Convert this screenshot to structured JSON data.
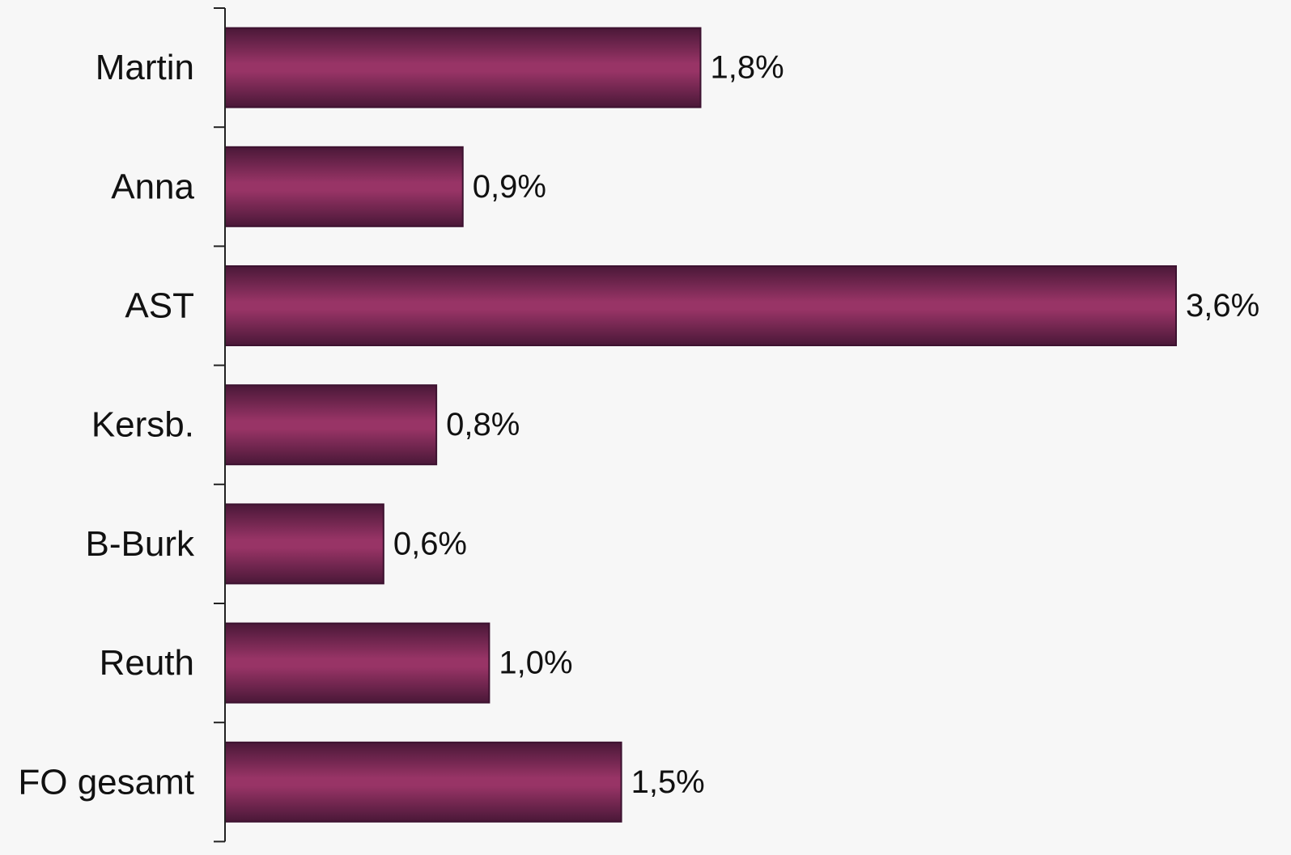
{
  "chart_data": {
    "type": "bar",
    "orientation": "horizontal",
    "categories": [
      "Martin",
      "Anna",
      "AST",
      "Kersb.",
      "B-Burk",
      "Reuth",
      "FO gesamt"
    ],
    "values": [
      1.8,
      0.9,
      3.6,
      0.8,
      0.6,
      1.0,
      1.5
    ],
    "value_labels": [
      "1,8%",
      "0,9%",
      "3,6%",
      "0,8%",
      "0,6%",
      "1,0%",
      "1,5%"
    ],
    "unit": "%",
    "xlim": [
      0,
      3.6
    ],
    "grid": false,
    "legend": "none",
    "colors": {
      "bar_edge": "#3d1230",
      "bar_mid": "#983466",
      "bar_dark": "#4a1838",
      "axis": "#222222",
      "background": "#f7f7f7"
    }
  }
}
